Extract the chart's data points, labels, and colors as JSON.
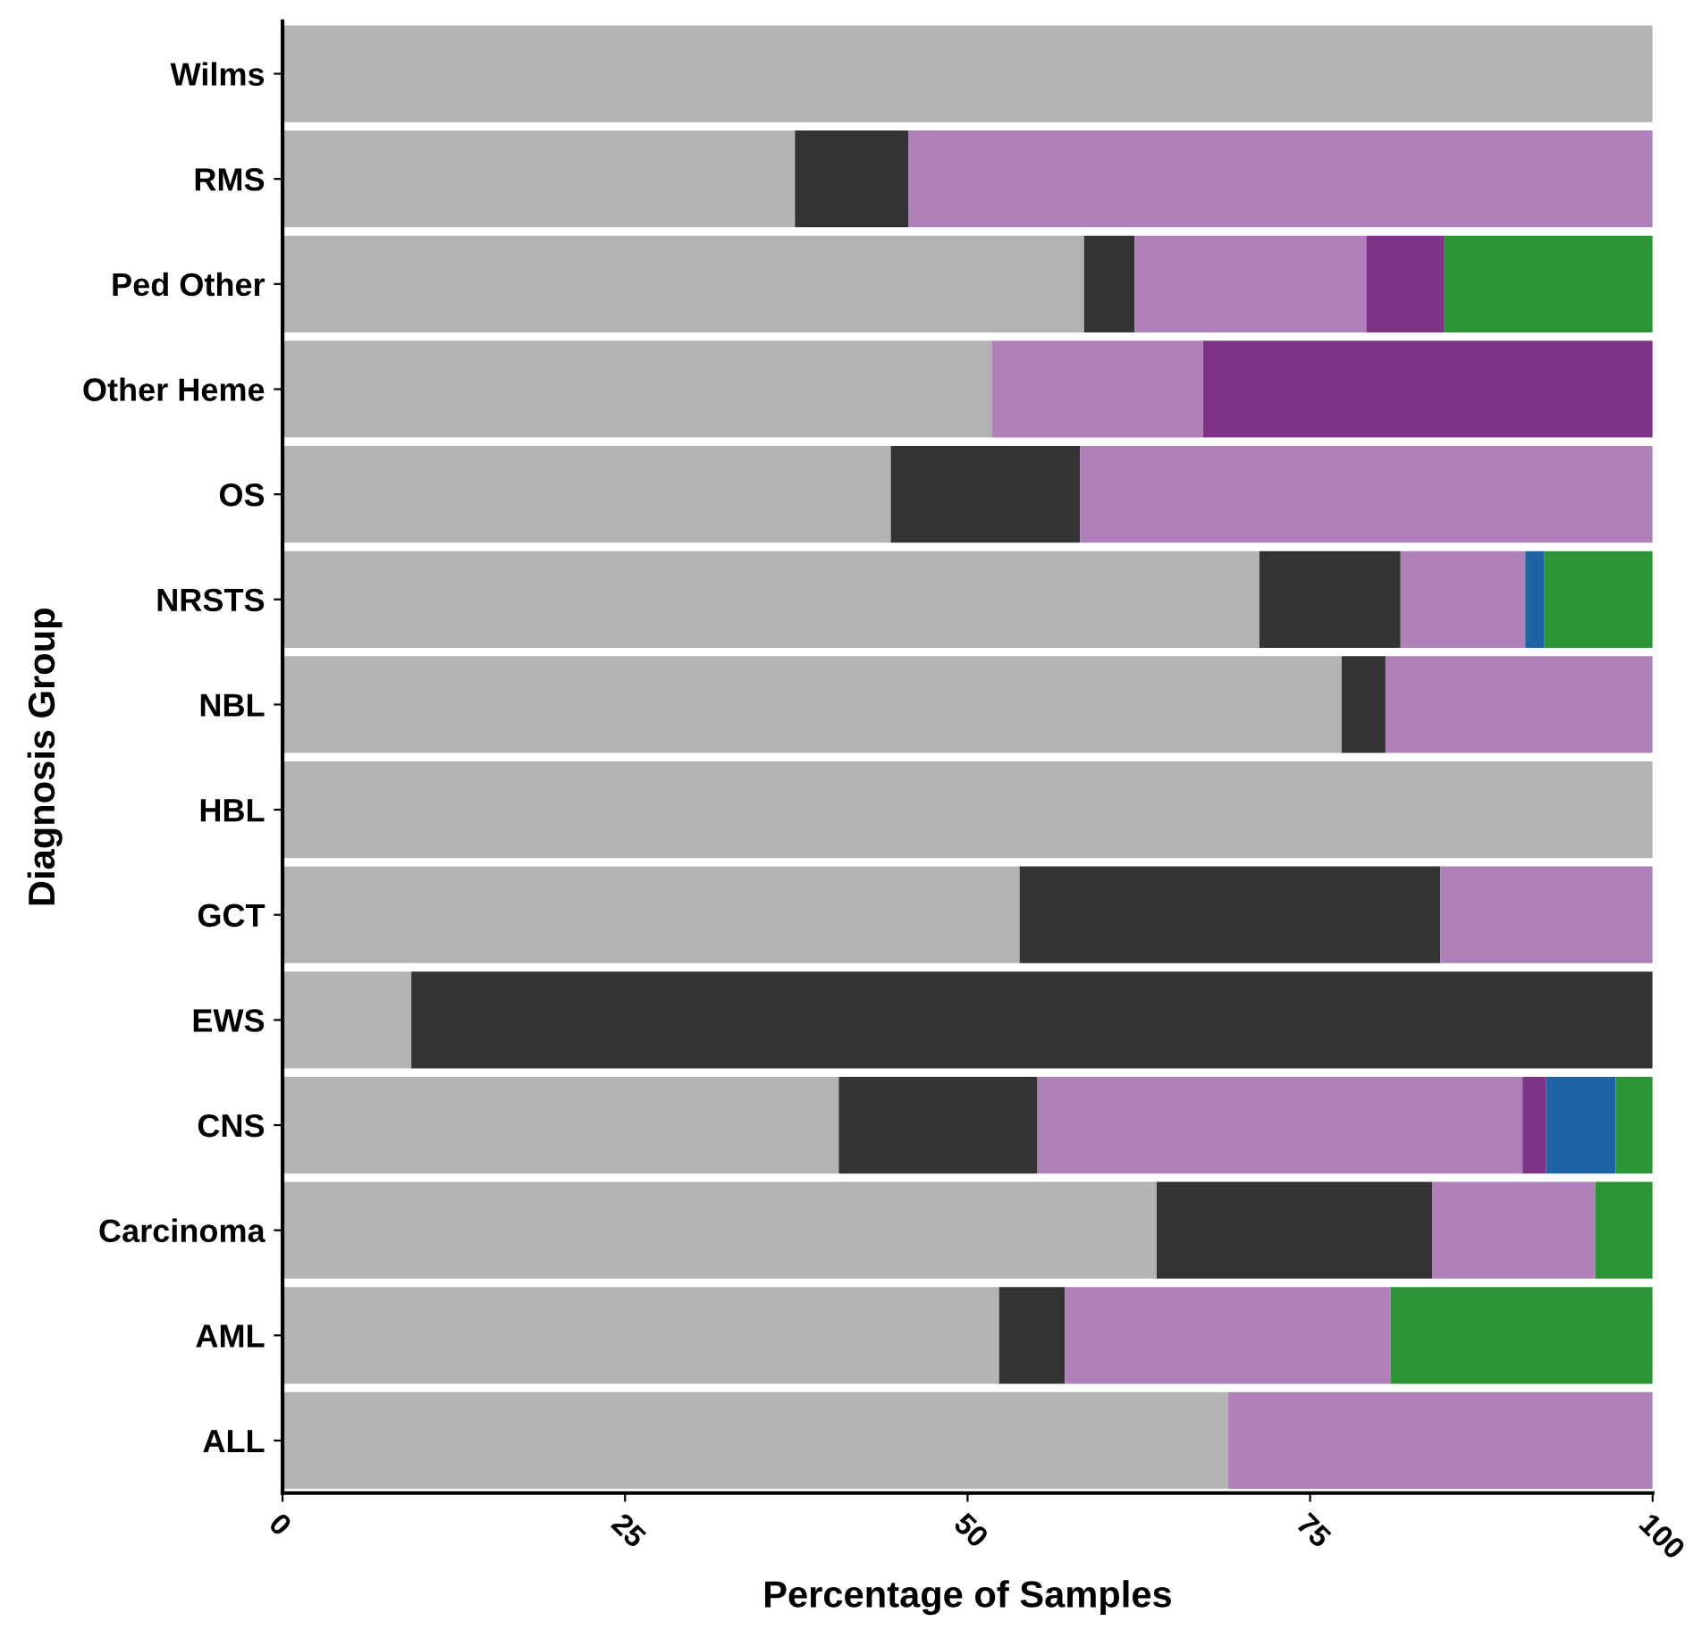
{
  "chart_data": {
    "type": "bar",
    "orientation": "horizontal",
    "stacked": true,
    "xlabel": "Percentage of Samples",
    "ylabel": "Diagnosis Group",
    "categories": [
      "Wilms",
      "RMS",
      "Ped Other",
      "Other Heme",
      "OS",
      "NRSTS",
      "NBL",
      "HBL",
      "GCT",
      "EWS",
      "CNS",
      "Carcinoma",
      "AML",
      "ALL"
    ],
    "series": [
      {
        "color": "#b3b3b3",
        "values": [
          100,
          37.4,
          58.5,
          51.8,
          44.4,
          71.3,
          77.3,
          100,
          53.8,
          9.4,
          40.6,
          63.8,
          52.3,
          69.0
        ]
      },
      {
        "color": "#333333",
        "values": [
          null,
          8.3,
          3.7,
          null,
          13.8,
          10.3,
          3.2,
          null,
          30.7,
          90.6,
          14.5,
          20.1,
          4.8,
          null
        ]
      },
      {
        "color": "#af80b9",
        "values": [
          null,
          54.3,
          16.9,
          15.4,
          41.8,
          9.1,
          19.5,
          null,
          15.5,
          null,
          35.4,
          11.9,
          23.8,
          31.0
        ]
      },
      {
        "color": "#7f3386",
        "values": [
          null,
          null,
          5.7,
          32.8,
          null,
          null,
          null,
          null,
          null,
          null,
          1.7,
          null,
          null,
          null
        ]
      },
      {
        "color": "#1f63a5",
        "values": [
          null,
          null,
          null,
          null,
          null,
          1.4,
          null,
          null,
          null,
          null,
          5.1,
          null,
          null,
          null
        ]
      },
      {
        "color": "#2c9337",
        "values": [
          null,
          null,
          15.2,
          null,
          null,
          7.9,
          null,
          null,
          null,
          null,
          2.7,
          4.2,
          19.1,
          null
        ]
      }
    ],
    "xlim": [
      0,
      100
    ],
    "xticks": [
      0,
      25,
      50,
      75,
      100
    ],
    "grid": false,
    "legend": false
  }
}
